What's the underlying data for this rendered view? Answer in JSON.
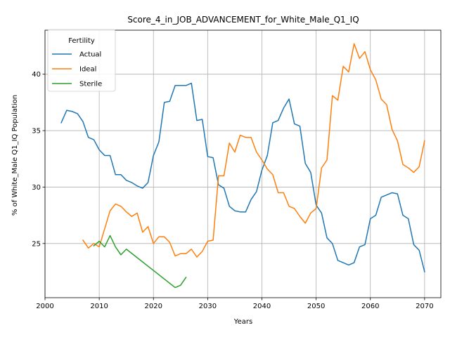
{
  "chart_data": {
    "type": "line",
    "title": "Score_4_in_JOB_ADVANCEMENT_for_White_Male_Q1_IQ",
    "xlabel": "Years",
    "ylabel": "% of White_Male Q1_IQ Population",
    "xlim": [
      2000,
      2073
    ],
    "ylim": [
      20.2,
      43.9
    ],
    "xticks": [
      2000,
      2010,
      2020,
      2030,
      2040,
      2050,
      2060,
      2070
    ],
    "yticks": [
      25,
      30,
      35,
      40
    ],
    "grid": true,
    "legend": {
      "title": "Fertility",
      "placement": "top-left"
    },
    "series": [
      {
        "name": "Actual",
        "color": "#1f77b4",
        "x": [
          2003,
          2004,
          2005,
          2006,
          2007,
          2008,
          2009,
          2010,
          2011,
          2012,
          2013,
          2014,
          2015,
          2016,
          2017,
          2018,
          2019,
          2020,
          2021,
          2022,
          2023,
          2024,
          2025,
          2026,
          2027,
          2028,
          2029,
          2030,
          2031,
          2032,
          2033,
          2034,
          2035,
          2036,
          2037,
          2038,
          2039,
          2040,
          2041,
          2042,
          2043,
          2044,
          2045,
          2046,
          2047,
          2048,
          2049,
          2050,
          2051,
          2052,
          2053,
          2054,
          2055,
          2056,
          2057,
          2058,
          2059,
          2060,
          2061,
          2062,
          2063,
          2064,
          2065,
          2066,
          2067,
          2068,
          2069,
          2070
        ],
        "values": [
          35.7,
          36.8,
          36.7,
          36.5,
          35.8,
          34.4,
          34.2,
          33.3,
          32.8,
          32.8,
          31.1,
          31.1,
          30.6,
          30.4,
          30.1,
          29.9,
          30.4,
          32.8,
          34.0,
          37.5,
          37.6,
          39.0,
          39.0,
          39.0,
          39.2,
          35.9,
          36.0,
          32.7,
          32.6,
          30.2,
          29.9,
          28.3,
          27.9,
          27.8,
          27.8,
          28.9,
          29.6,
          31.5,
          32.8,
          35.7,
          35.9,
          37.0,
          37.8,
          35.6,
          35.4,
          32.1,
          31.3,
          28.4,
          27.7,
          25.5,
          25.0,
          23.5,
          23.3,
          23.1,
          23.3,
          24.7,
          24.9,
          27.2,
          27.5,
          29.1,
          29.3,
          29.5,
          29.4,
          27.5,
          27.2,
          24.9,
          24.4,
          22.5
        ]
      },
      {
        "name": "Ideal",
        "color": "#ff7f0e",
        "x": [
          2007,
          2008,
          2009,
          2010,
          2011,
          2012,
          2013,
          2014,
          2015,
          2016,
          2017,
          2018,
          2019,
          2020,
          2021,
          2022,
          2023,
          2024,
          2025,
          2026,
          2027,
          2028,
          2029,
          2030,
          2031,
          2032,
          2033,
          2034,
          2035,
          2036,
          2037,
          2038,
          2039,
          2040,
          2041,
          2042,
          2043,
          2044,
          2045,
          2046,
          2047,
          2048,
          2049,
          2050,
          2051,
          2052,
          2053,
          2054,
          2055,
          2056,
          2057,
          2058,
          2059,
          2060,
          2061,
          2062,
          2063,
          2064,
          2065,
          2066,
          2067,
          2068,
          2069,
          2070
        ],
        "values": [
          25.3,
          24.6,
          25.0,
          24.7,
          26.3,
          27.9,
          28.5,
          28.3,
          27.8,
          27.4,
          27.7,
          26.0,
          26.5,
          25.0,
          25.6,
          25.6,
          25.1,
          23.9,
          24.1,
          24.1,
          24.5,
          23.8,
          24.3,
          25.2,
          25.3,
          31.0,
          31.0,
          33.9,
          33.1,
          34.6,
          34.4,
          34.4,
          33.1,
          32.4,
          31.6,
          31.1,
          29.5,
          29.5,
          28.3,
          28.1,
          27.4,
          26.8,
          27.7,
          28.1,
          31.7,
          32.4,
          38.1,
          37.7,
          40.7,
          40.2,
          42.7,
          41.4,
          42.0,
          40.4,
          39.5,
          37.8,
          37.3,
          35.1,
          34.1,
          32.0,
          31.7,
          31.3,
          31.8,
          34.1
        ]
      },
      {
        "name": "Sterile",
        "color": "#2ca02c",
        "x": [
          2009,
          2010,
          2011,
          2012,
          2013,
          2014,
          2015,
          2024,
          2025,
          2026
        ],
        "values": [
          24.8,
          25.2,
          24.7,
          25.7,
          24.7,
          24.0,
          24.5,
          21.1,
          21.3,
          22.0
        ]
      }
    ]
  }
}
